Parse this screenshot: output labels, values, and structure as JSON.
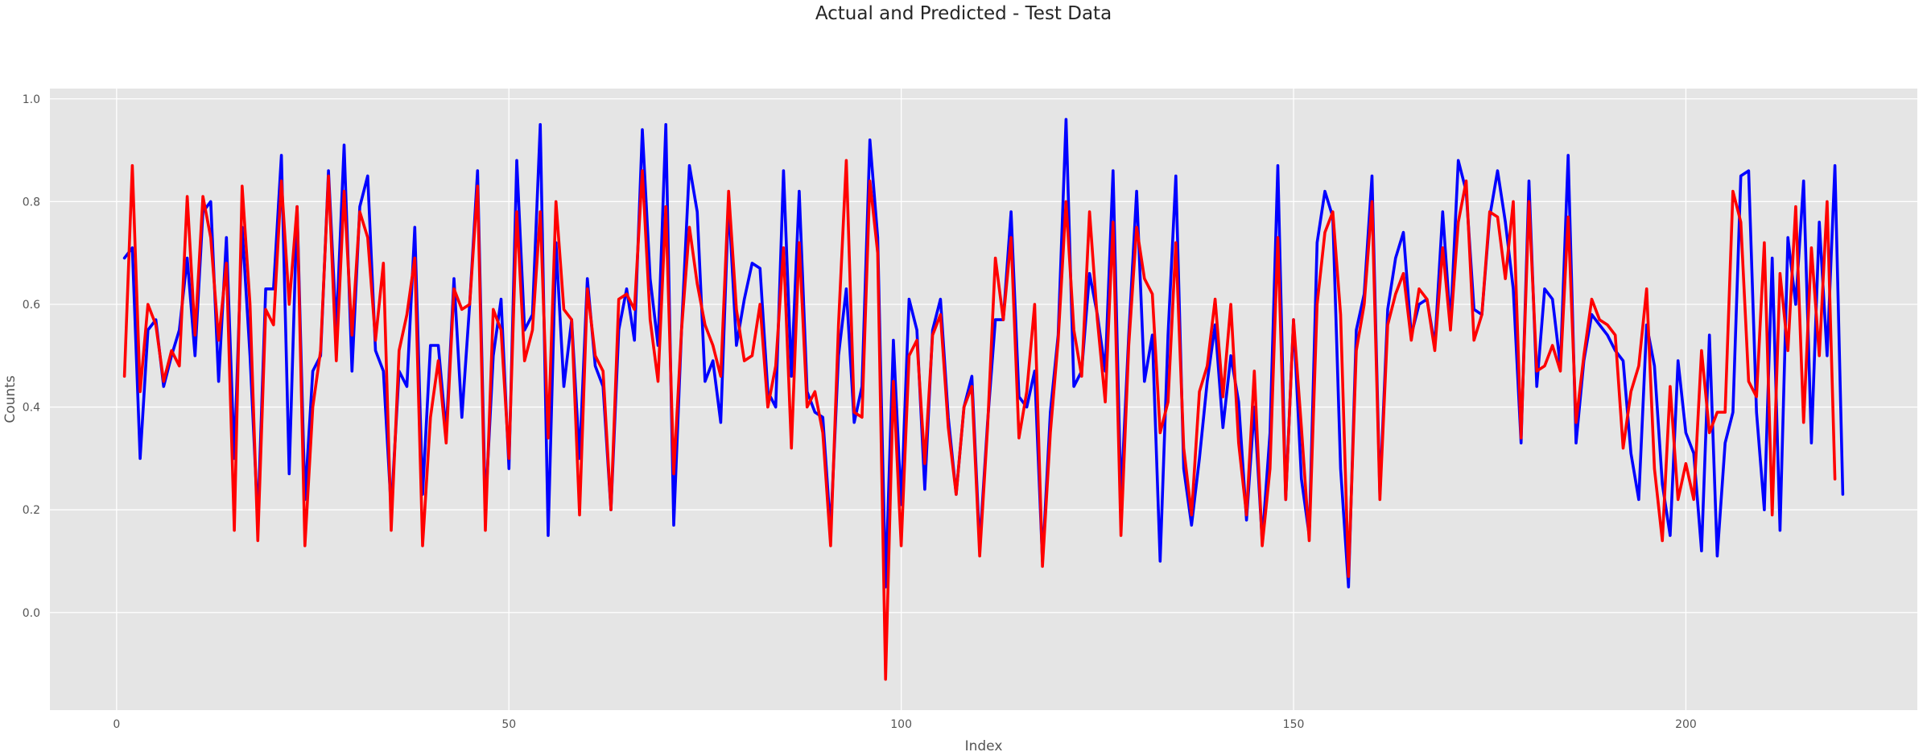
{
  "chart_data": {
    "type": "line",
    "title": "Actual and Predicted - Test Data",
    "xlabel": "Index",
    "ylabel": "Counts",
    "xlim": [
      -8.5,
      229.5
    ],
    "ylim": [
      -0.19,
      1.02
    ],
    "xticks": [
      0,
      50,
      100,
      150,
      200
    ],
    "yticks": [
      0.0,
      0.2,
      0.4,
      0.6,
      0.8,
      1.0
    ],
    "grid": true,
    "legend": "none",
    "series": [
      {
        "color": "#0000ff",
        "x_start": 1,
        "values": [
          0.69,
          0.71,
          0.3,
          0.55,
          0.57,
          0.44,
          0.5,
          0.55,
          0.69,
          0.5,
          0.78,
          0.8,
          0.45,
          0.73,
          0.3,
          0.75,
          0.5,
          0.18,
          0.63,
          0.63,
          0.89,
          0.27,
          0.79,
          0.22,
          0.47,
          0.5,
          0.86,
          0.55,
          0.91,
          0.47,
          0.79,
          0.85,
          0.51,
          0.47,
          0.2,
          0.47,
          0.44,
          0.75,
          0.23,
          0.52,
          0.52,
          0.35,
          0.65,
          0.38,
          0.6,
          0.86,
          0.2,
          0.5,
          0.61,
          0.28,
          0.88,
          0.55,
          0.58,
          0.95,
          0.15,
          0.72,
          0.44,
          0.57,
          0.3,
          0.65,
          0.48,
          0.44,
          0.2,
          0.55,
          0.63,
          0.53,
          0.94,
          0.65,
          0.52,
          0.95,
          0.17,
          0.55,
          0.87,
          0.78,
          0.45,
          0.49,
          0.37,
          0.8,
          0.52,
          0.61,
          0.68,
          0.67,
          0.43,
          0.4,
          0.86,
          0.46,
          0.82,
          0.43,
          0.39,
          0.38,
          0.16,
          0.5,
          0.63,
          0.37,
          0.44,
          0.92,
          0.73,
          0.05,
          0.53,
          0.21,
          0.61,
          0.55,
          0.24,
          0.55,
          0.61,
          0.38,
          0.23,
          0.4,
          0.46,
          0.13,
          0.37,
          0.57,
          0.57,
          0.78,
          0.42,
          0.4,
          0.47,
          0.1,
          0.39,
          0.54,
          0.96,
          0.44,
          0.47,
          0.66,
          0.58,
          0.47,
          0.86,
          0.22,
          0.54,
          0.82,
          0.45,
          0.54,
          0.1,
          0.54,
          0.85,
          0.28,
          0.17,
          0.3,
          0.45,
          0.56,
          0.36,
          0.5,
          0.41,
          0.18,
          0.4,
          0.14,
          0.35,
          0.87,
          0.22,
          0.57,
          0.26,
          0.15,
          0.72,
          0.82,
          0.77,
          0.28,
          0.05,
          0.55,
          0.62,
          0.85,
          0.23,
          0.59,
          0.69,
          0.74,
          0.54,
          0.6,
          0.61,
          0.52,
          0.78,
          0.56,
          0.88,
          0.82,
          0.59,
          0.58,
          0.77,
          0.86,
          0.76,
          0.63,
          0.33,
          0.84,
          0.44,
          0.63,
          0.61,
          0.48,
          0.89,
          0.33,
          0.49,
          0.58,
          0.56,
          0.54,
          0.51,
          0.49,
          0.31,
          0.22,
          0.56,
          0.48,
          0.25,
          0.15,
          0.49,
          0.35,
          0.31,
          0.12,
          0.54,
          0.11,
          0.33,
          0.39,
          0.85,
          0.86,
          0.39,
          0.2,
          0.69,
          0.16,
          0.73,
          0.6,
          0.84,
          0.33,
          0.76,
          0.5,
          0.87,
          0.23
        ]
      },
      {
        "color": "#ff0000",
        "x_start": 1,
        "values": [
          0.46,
          0.87,
          0.43,
          0.6,
          0.56,
          0.45,
          0.51,
          0.48,
          0.81,
          0.54,
          0.81,
          0.73,
          0.53,
          0.68,
          0.16,
          0.83,
          0.6,
          0.14,
          0.59,
          0.56,
          0.84,
          0.6,
          0.79,
          0.13,
          0.4,
          0.51,
          0.85,
          0.49,
          0.82,
          0.54,
          0.78,
          0.73,
          0.53,
          0.68,
          0.16,
          0.51,
          0.58,
          0.69,
          0.13,
          0.38,
          0.49,
          0.33,
          0.63,
          0.59,
          0.6,
          0.83,
          0.16,
          0.59,
          0.55,
          0.3,
          0.78,
          0.49,
          0.55,
          0.78,
          0.34,
          0.8,
          0.59,
          0.57,
          0.19,
          0.63,
          0.5,
          0.47,
          0.2,
          0.61,
          0.62,
          0.59,
          0.86,
          0.57,
          0.45,
          0.79,
          0.27,
          0.55,
          0.75,
          0.64,
          0.56,
          0.52,
          0.46,
          0.82,
          0.59,
          0.49,
          0.5,
          0.6,
          0.4,
          0.48,
          0.71,
          0.32,
          0.72,
          0.4,
          0.43,
          0.35,
          0.13,
          0.56,
          0.88,
          0.39,
          0.38,
          0.84,
          0.7,
          -0.13,
          0.45,
          0.13,
          0.5,
          0.53,
          0.29,
          0.54,
          0.58,
          0.36,
          0.23,
          0.4,
          0.44,
          0.11,
          0.36,
          0.69,
          0.57,
          0.73,
          0.34,
          0.43,
          0.6,
          0.09,
          0.35,
          0.53,
          0.8,
          0.55,
          0.46,
          0.78,
          0.57,
          0.41,
          0.76,
          0.15,
          0.52,
          0.75,
          0.65,
          0.62,
          0.35,
          0.41,
          0.72,
          0.32,
          0.19,
          0.43,
          0.48,
          0.61,
          0.42,
          0.6,
          0.33,
          0.19,
          0.47,
          0.13,
          0.28,
          0.73,
          0.22,
          0.57,
          0.36,
          0.14,
          0.6,
          0.74,
          0.78,
          0.58,
          0.07,
          0.51,
          0.6,
          0.8,
          0.22,
          0.56,
          0.62,
          0.66,
          0.53,
          0.63,
          0.61,
          0.51,
          0.71,
          0.55,
          0.76,
          0.84,
          0.53,
          0.58,
          0.78,
          0.77,
          0.65,
          0.8,
          0.34,
          0.8,
          0.47,
          0.48,
          0.52,
          0.47,
          0.77,
          0.37,
          0.5,
          0.61,
          0.57,
          0.56,
          0.54,
          0.32,
          0.43,
          0.48,
          0.63,
          0.28,
          0.14,
          0.44,
          0.22,
          0.29,
          0.22,
          0.51,
          0.35,
          0.39,
          0.39,
          0.82,
          0.76,
          0.45,
          0.42,
          0.72,
          0.19,
          0.66,
          0.51,
          0.79,
          0.37,
          0.71,
          0.5,
          0.8,
          0.26
        ]
      }
    ]
  }
}
